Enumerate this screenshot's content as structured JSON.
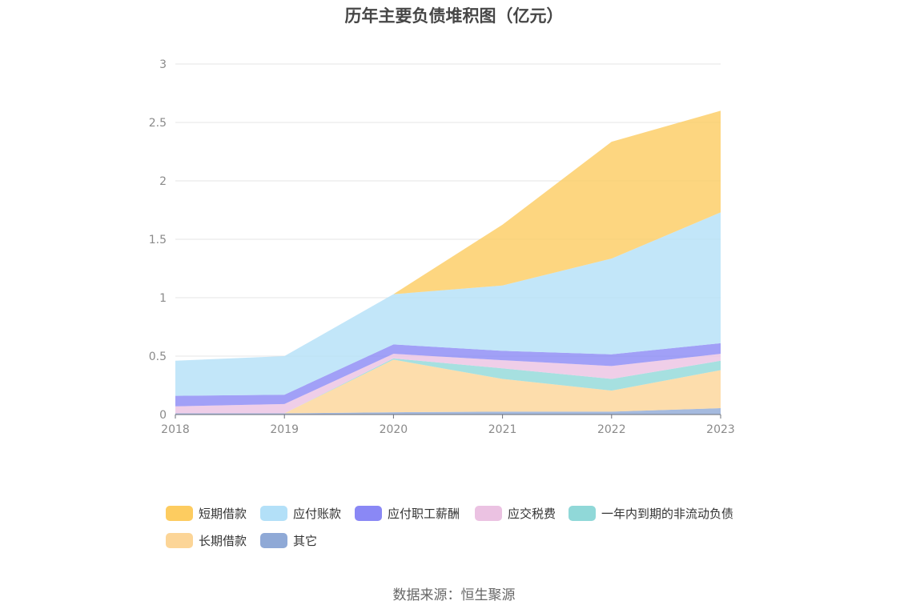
{
  "chart_data": {
    "type": "area",
    "stacked": true,
    "title": "历年主要负债堆积图（亿元）",
    "x": [
      "2018",
      "2019",
      "2020",
      "2021",
      "2022",
      "2023"
    ],
    "y_ticks": [
      "0",
      "0.5",
      "1",
      "1.5",
      "2",
      "2.5",
      "3"
    ],
    "ylim": [
      0,
      3
    ],
    "grid": true,
    "legend_position": "bottom",
    "series": [
      {
        "name": "其它",
        "color": "#8fa9d6",
        "values": [
          0.01,
          0.01,
          0.02,
          0.025,
          0.025,
          0.055
        ]
      },
      {
        "name": "长期借款",
        "color": "#fcd597",
        "values": [
          0,
          0,
          0.45,
          0.28,
          0.18,
          0.325
        ]
      },
      {
        "name": "一年内到期的非流动负债",
        "color": "#90d8d8",
        "values": [
          0,
          0,
          0.01,
          0.09,
          0.1,
          0.08
        ]
      },
      {
        "name": "应交税费",
        "color": "#ebc2e2",
        "values": [
          0.06,
          0.08,
          0.04,
          0.07,
          0.11,
          0.06
        ]
      },
      {
        "name": "应付职工薪酬",
        "color": "#8a88f5",
        "values": [
          0.09,
          0.08,
          0.08,
          0.08,
          0.1,
          0.09
        ]
      },
      {
        "name": "应付账款",
        "color": "#b3e0f8",
        "values": [
          0.3,
          0.33,
          0.43,
          0.56,
          0.82,
          1.12
        ]
      },
      {
        "name": "短期借款",
        "color": "#fdcc60",
        "values": [
          0,
          0,
          0,
          0.52,
          1.0,
          0.87
        ]
      }
    ],
    "legend": [
      "短期借款",
      "应付账款",
      "应付职工薪酬",
      "应交税费",
      "一年内到期的非流动负债",
      "长期借款",
      "其它"
    ]
  },
  "source_note": "数据来源：恒生聚源"
}
